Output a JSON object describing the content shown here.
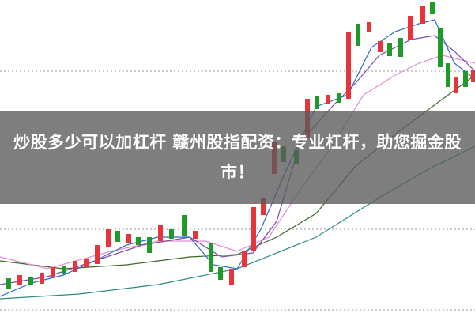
{
  "banner": {
    "title": "炒股多少可以加杠杆 赣州股指配资：专业杠杆，助您掘金股市！"
  }
}
